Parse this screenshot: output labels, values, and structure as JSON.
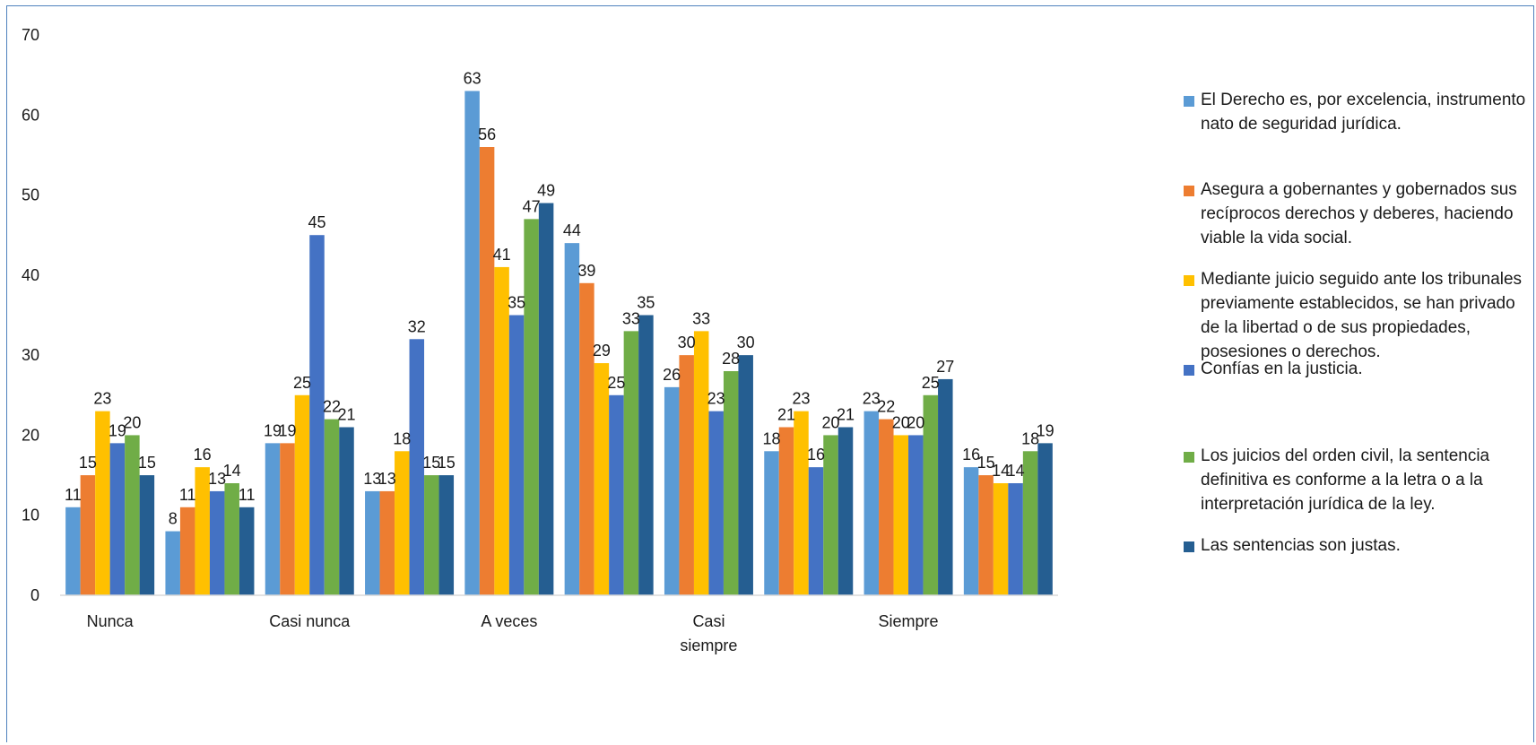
{
  "chart_data": {
    "type": "bar",
    "categories": [
      "Nunca",
      "",
      "Casi nunca",
      "",
      "A veces",
      "",
      "Casi siempre",
      "",
      "Siempre",
      ""
    ],
    "series": [
      {
        "name": "El Derecho es, por excelencia, instrumento nato de seguridad jurídica.",
        "color": "#5b9bd5",
        "values": [
          11,
          8,
          19,
          13,
          63,
          44,
          26,
          18,
          23,
          16
        ]
      },
      {
        "name": "Asegura a gobernantes y gobernados sus recíprocos derechos y deberes, haciendo viable la vida social.",
        "color": "#ed7d31",
        "values": [
          15,
          11,
          19,
          13,
          56,
          39,
          30,
          21,
          22,
          15
        ]
      },
      {
        "name": "Mediante juicio seguido ante los tribunales previamente establecidos, se han privado de la libertad o de sus propiedades, posesiones o derechos.",
        "color": "#ffc000",
        "values": [
          23,
          16,
          25,
          18,
          41,
          29,
          33,
          23,
          20,
          14
        ]
      },
      {
        "name": "Confías en la justicia.",
        "color": "#4472c4",
        "values": [
          19,
          13,
          45,
          32,
          35,
          25,
          23,
          16,
          20,
          14
        ]
      },
      {
        "name": "Los juicios del orden civil, la sentencia definitiva es conforme a la letra o a la interpretación jurídica de la ley.",
        "color": "#70ad47",
        "values": [
          20,
          14,
          22,
          15,
          47,
          33,
          28,
          20,
          25,
          18
        ]
      },
      {
        "name": "Las sentencias son justas.",
        "color": "#255e91",
        "values": [
          15,
          11,
          21,
          15,
          49,
          35,
          30,
          21,
          27,
          19
        ]
      }
    ],
    "ylim": [
      0,
      70
    ],
    "yticks": [
      0,
      10,
      20,
      30,
      40,
      50,
      60,
      70
    ],
    "legend_position": "right",
    "grid": false
  }
}
